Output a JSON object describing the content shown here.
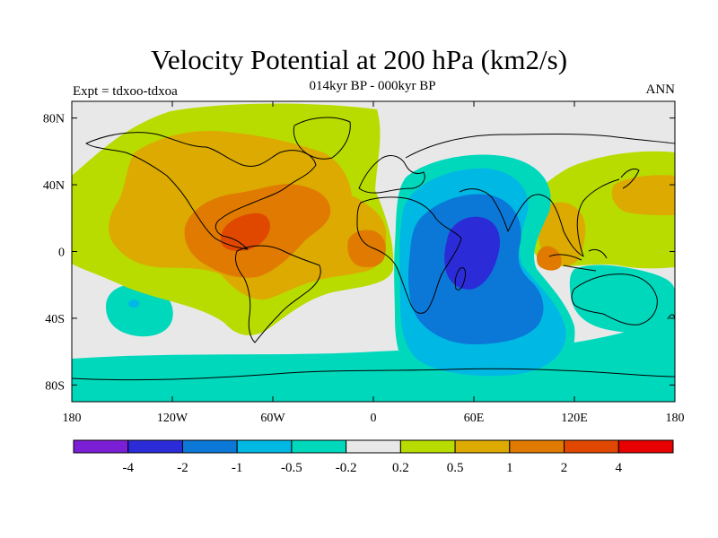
{
  "title": "Velocity Potential at 200 hPa (km2/s)",
  "subtitle": "014kyr BP - 000kyr BP",
  "left_label": "Expt = tdxoo-tdxoa",
  "right_label": "ANN",
  "lat_ticks": [
    {
      "label": "80N",
      "lat": 80
    },
    {
      "label": "40N",
      "lat": 40
    },
    {
      "label": "0",
      "lat": 0
    },
    {
      "label": "40S",
      "lat": -40
    },
    {
      "label": "80S",
      "lat": -80
    }
  ],
  "lon_ticks": [
    {
      "label": "180",
      "lon": -180
    },
    {
      "label": "120W",
      "lon": -120
    },
    {
      "label": "60W",
      "lon": -60
    },
    {
      "label": "0",
      "lon": 0
    },
    {
      "label": "60E",
      "lon": 60
    },
    {
      "label": "120E",
      "lon": 120
    },
    {
      "label": "180",
      "lon": 180
    }
  ],
  "colorbar": {
    "colors": [
      "#7b1fd6",
      "#2b2bd8",
      "#0b78d8",
      "#00b8e4",
      "#00d8bc",
      "#e8e8e8",
      "#b8dc00",
      "#dcaa00",
      "#e07a00",
      "#e04800",
      "#e80000"
    ],
    "labels": [
      "-4",
      "-2",
      "-1",
      "-0.5",
      "-0.2",
      "0.2",
      "0.5",
      "1",
      "2",
      "4"
    ]
  },
  "colors": {
    "neutral": "#e8e8e8",
    "pos_weak": "#b8dc00",
    "pos_mid": "#dcaa00",
    "pos_strong": "#e07a00",
    "pos_max": "#e04800",
    "neg_weak": "#00d8bc",
    "neg_mid": "#00b8e4",
    "neg_strong": "#0b78d8",
    "neg_max": "#2b2bd8"
  }
}
